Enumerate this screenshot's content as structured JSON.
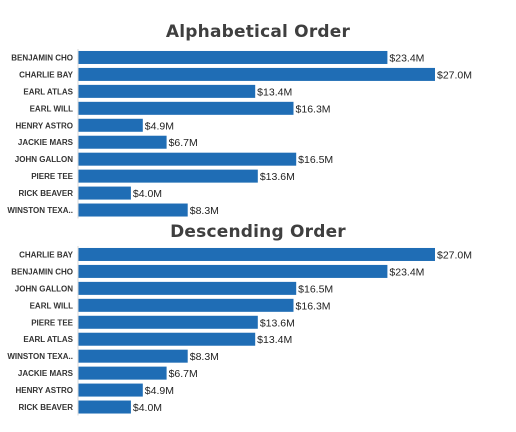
{
  "chart_data": [
    {
      "type": "bar",
      "orientation": "horizontal",
      "title": "Alphabetical Order",
      "categories": [
        "BENJAMIN CHO",
        "CHARLIE BAY",
        "EARL ATLAS",
        "EARL WILL",
        "HENRY ASTRO",
        "JACKIE MARS",
        "JOHN GALLON",
        "PIERE TEE",
        "RICK BEAVER",
        "WINSTON TEXA.."
      ],
      "values": [
        23.4,
        27.0,
        13.4,
        16.3,
        4.9,
        6.7,
        16.5,
        13.6,
        4.0,
        8.3
      ],
      "value_labels": [
        "$23.4M",
        "$27.0M",
        "$13.4M",
        "$16.3M",
        "$4.9M",
        "$6.7M",
        "$16.5M",
        "$13.6M",
        "$4.0M",
        "$8.3M"
      ],
      "bar_color": "#1f6db5",
      "xlim": [
        0,
        27.0
      ],
      "grid": false,
      "legend": "none"
    },
    {
      "type": "bar",
      "orientation": "horizontal",
      "title": "Descending Order",
      "categories": [
        "CHARLIE BAY",
        "BENJAMIN CHO",
        "JOHN GALLON",
        "EARL WILL",
        "PIERE TEE",
        "EARL ATLAS",
        "WINSTON TEXA..",
        "JACKIE MARS",
        "HENRY ASTRO",
        "RICK BEAVER"
      ],
      "values": [
        27.0,
        23.4,
        16.5,
        16.3,
        13.6,
        13.4,
        8.3,
        6.7,
        4.9,
        4.0
      ],
      "value_labels": [
        "$27.0M",
        "$23.4M",
        "$16.5M",
        "$16.3M",
        "$13.6M",
        "$13.4M",
        "$8.3M",
        "$6.7M",
        "$4.9M",
        "$4.0M"
      ],
      "bar_color": "#1f6db5",
      "xlim": [
        0,
        27.0
      ],
      "grid": false,
      "legend": "none"
    }
  ]
}
